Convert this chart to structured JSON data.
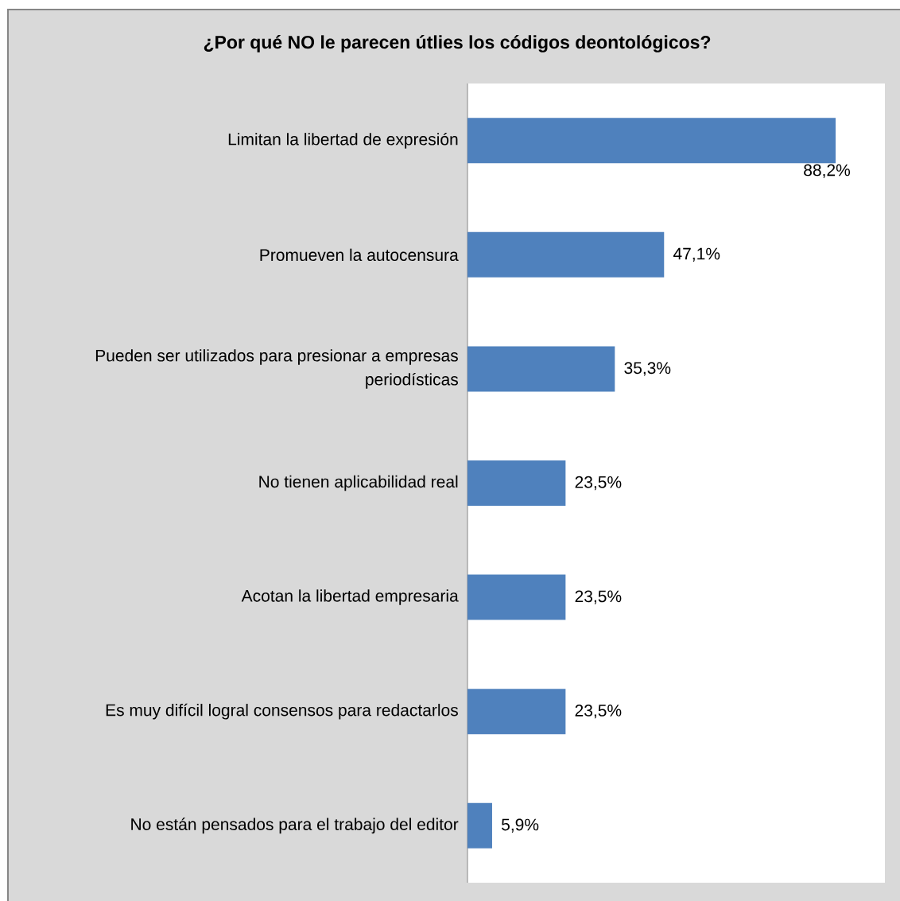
{
  "chart_data": {
    "type": "bar",
    "orientation": "horizontal",
    "title": "¿Por qué NO le parecen útlies los códigos deontológicos?",
    "categories": [
      "Limitan la libertad de expresión",
      "Promueven la autocensura",
      "Pueden ser utilizados para presionar a empresas periodísticas",
      "No tienen aplicabilidad real",
      "Acotan la libertad empresaria",
      "Es muy difícil logral consensos para redactarlos",
      "No están pensados para el trabajo del editor"
    ],
    "values": [
      88.2,
      47.1,
      35.3,
      23.5,
      23.5,
      23.5,
      5.9
    ],
    "value_labels": [
      "88,2%",
      "47,1%",
      "35,3%",
      "23,5%",
      "23,5%",
      "23,5%",
      "5,9%"
    ],
    "color": "#4f81bd",
    "xlim": [
      0,
      100
    ],
    "tick_labels": "y"
  }
}
